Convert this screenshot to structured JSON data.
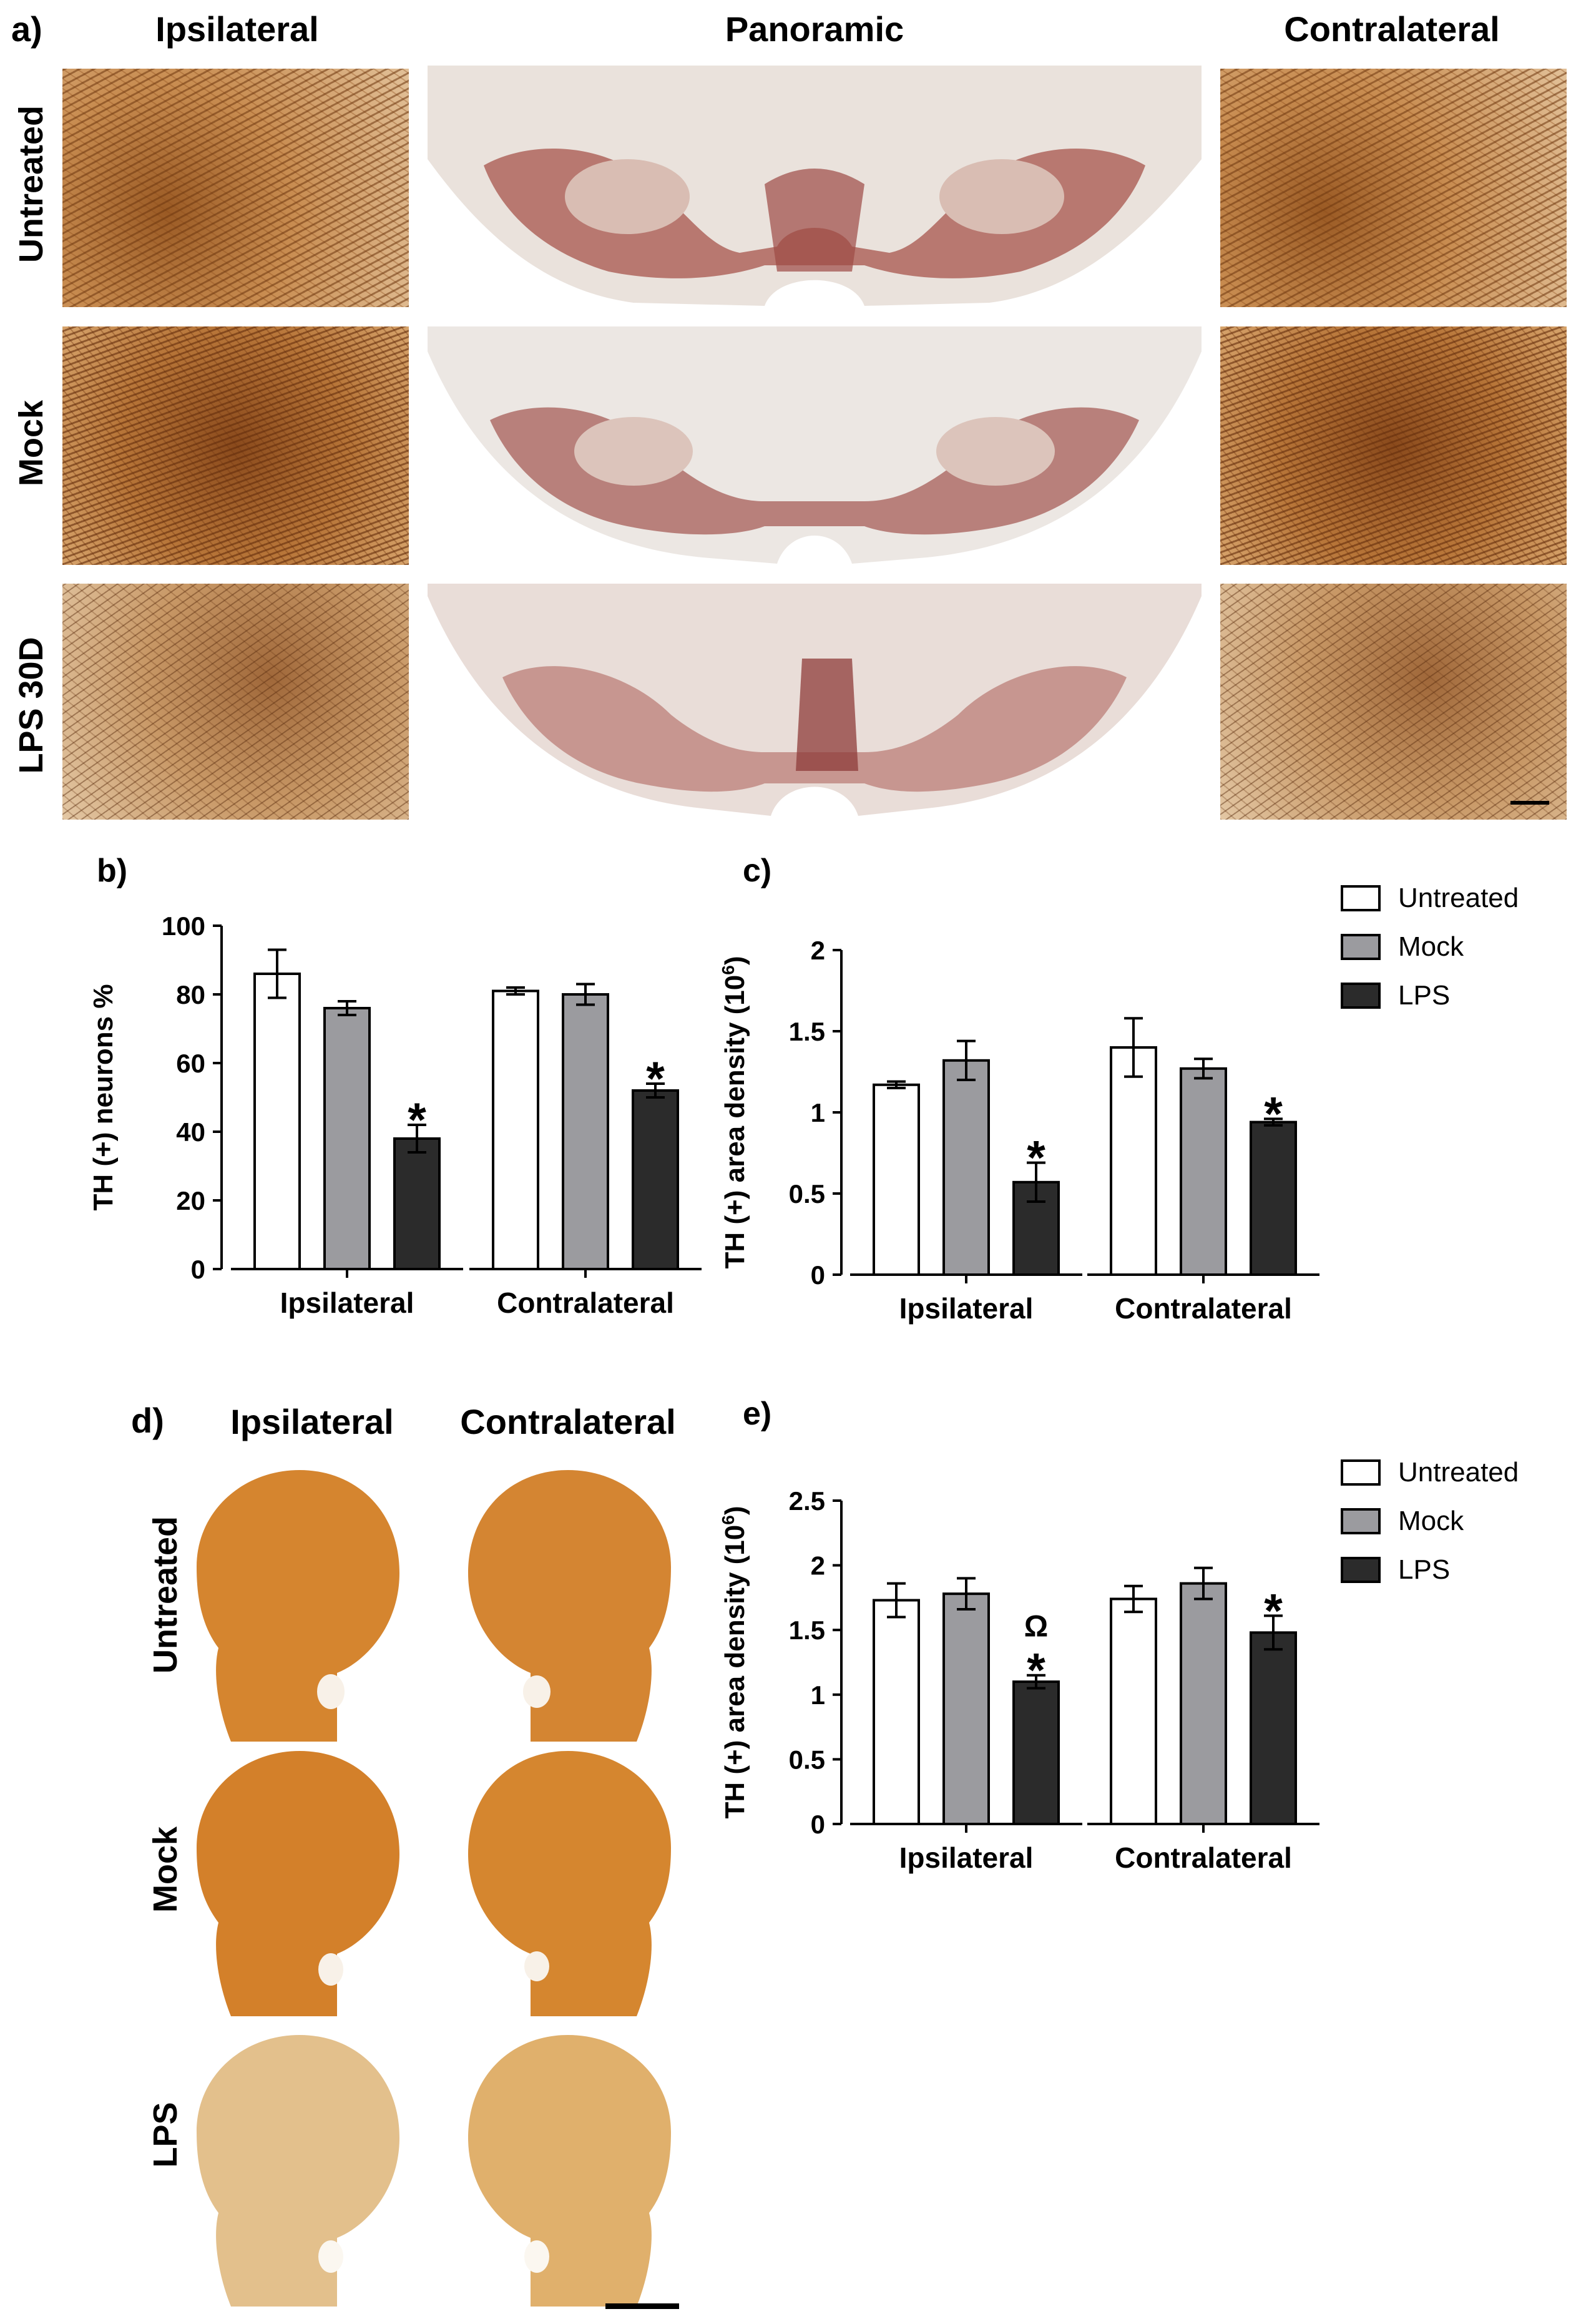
{
  "panel_a": {
    "label": "a)",
    "columns": [
      "Ipsilateral",
      "Panoramic",
      "Contralateral"
    ],
    "rows": [
      "Untreated",
      "Mock",
      "LPS 30D"
    ]
  },
  "panel_d": {
    "label": "d)",
    "columns": [
      "Ipsilateral",
      "Contralateral"
    ],
    "rows": [
      "Untreated",
      "Mock",
      "LPS"
    ]
  },
  "legend_items": [
    "Untreated",
    "Mock",
    "LPS"
  ],
  "colors": {
    "untreated": "#ffffff",
    "mock": "#9b9b9f",
    "lps": "#2b2b2b",
    "stroke": "#000000"
  },
  "chart_data": [
    {
      "panel": "b)",
      "type": "bar",
      "ylabel": "TH (+) neurons %",
      "categories": [
        "Ipsilateral",
        "Contralateral"
      ],
      "ylim": [
        0,
        100
      ],
      "yticks": [
        "0",
        "20",
        "40",
        "60",
        "80",
        "100"
      ],
      "series": [
        {
          "name": "Untreated",
          "values": [
            86,
            81
          ],
          "errors": [
            7,
            1
          ]
        },
        {
          "name": "Mock",
          "values": [
            76,
            80
          ],
          "errors": [
            2,
            3
          ]
        },
        {
          "name": "LPS",
          "values": [
            38,
            52
          ],
          "errors": [
            4,
            2
          ]
        }
      ],
      "annotations": [
        {
          "category": "Ipsilateral",
          "series": "LPS",
          "text": "*"
        },
        {
          "category": "Contralateral",
          "series": "LPS",
          "text": "*"
        }
      ]
    },
    {
      "panel": "c)",
      "type": "bar",
      "ylabel": "TH (+) area density (10",
      "ylabel_sup": "6",
      "ylabel_end": ")",
      "categories": [
        "Ipsilateral",
        "Contralateral"
      ],
      "ylim": [
        0,
        2
      ],
      "yticks": [
        "0",
        "0.5",
        "1",
        "1.5",
        "2"
      ],
      "legend": [
        "Untreated",
        "Mock",
        "LPS"
      ],
      "series": [
        {
          "name": "Untreated",
          "values": [
            1.17,
            1.4
          ],
          "errors": [
            0.02,
            0.18
          ]
        },
        {
          "name": "Mock",
          "values": [
            1.32,
            1.27
          ],
          "errors": [
            0.12,
            0.06
          ]
        },
        {
          "name": "LPS",
          "values": [
            0.57,
            0.94
          ],
          "errors": [
            0.12,
            0.02
          ]
        }
      ],
      "annotations": [
        {
          "category": "Ipsilateral",
          "series": "LPS",
          "text": "*"
        },
        {
          "category": "Contralateral",
          "series": "LPS",
          "text": "*"
        }
      ]
    },
    {
      "panel": "e)",
      "type": "bar",
      "ylabel": "TH (+) area density (10",
      "ylabel_sup": "6",
      "ylabel_end": ")",
      "categories": [
        "Ipsilateral",
        "Contralateral"
      ],
      "ylim": [
        0,
        2.5
      ],
      "yticks": [
        "0",
        "0.5",
        "1",
        "1.5",
        "2",
        "2.5"
      ],
      "legend": [
        "Untreated",
        "Mock",
        "LPS"
      ],
      "series": [
        {
          "name": "Untreated",
          "values": [
            1.73,
            1.74
          ],
          "errors": [
            0.13,
            0.1
          ]
        },
        {
          "name": "Mock",
          "values": [
            1.78,
            1.86
          ],
          "errors": [
            0.12,
            0.12
          ]
        },
        {
          "name": "LPS",
          "values": [
            1.1,
            1.48
          ],
          "errors": [
            0.05,
            0.13
          ]
        }
      ],
      "annotations": [
        {
          "category": "Ipsilateral",
          "series": "LPS",
          "text": "*",
          "text2": "Ω"
        },
        {
          "category": "Contralateral",
          "series": "LPS",
          "text": "*"
        }
      ]
    }
  ]
}
